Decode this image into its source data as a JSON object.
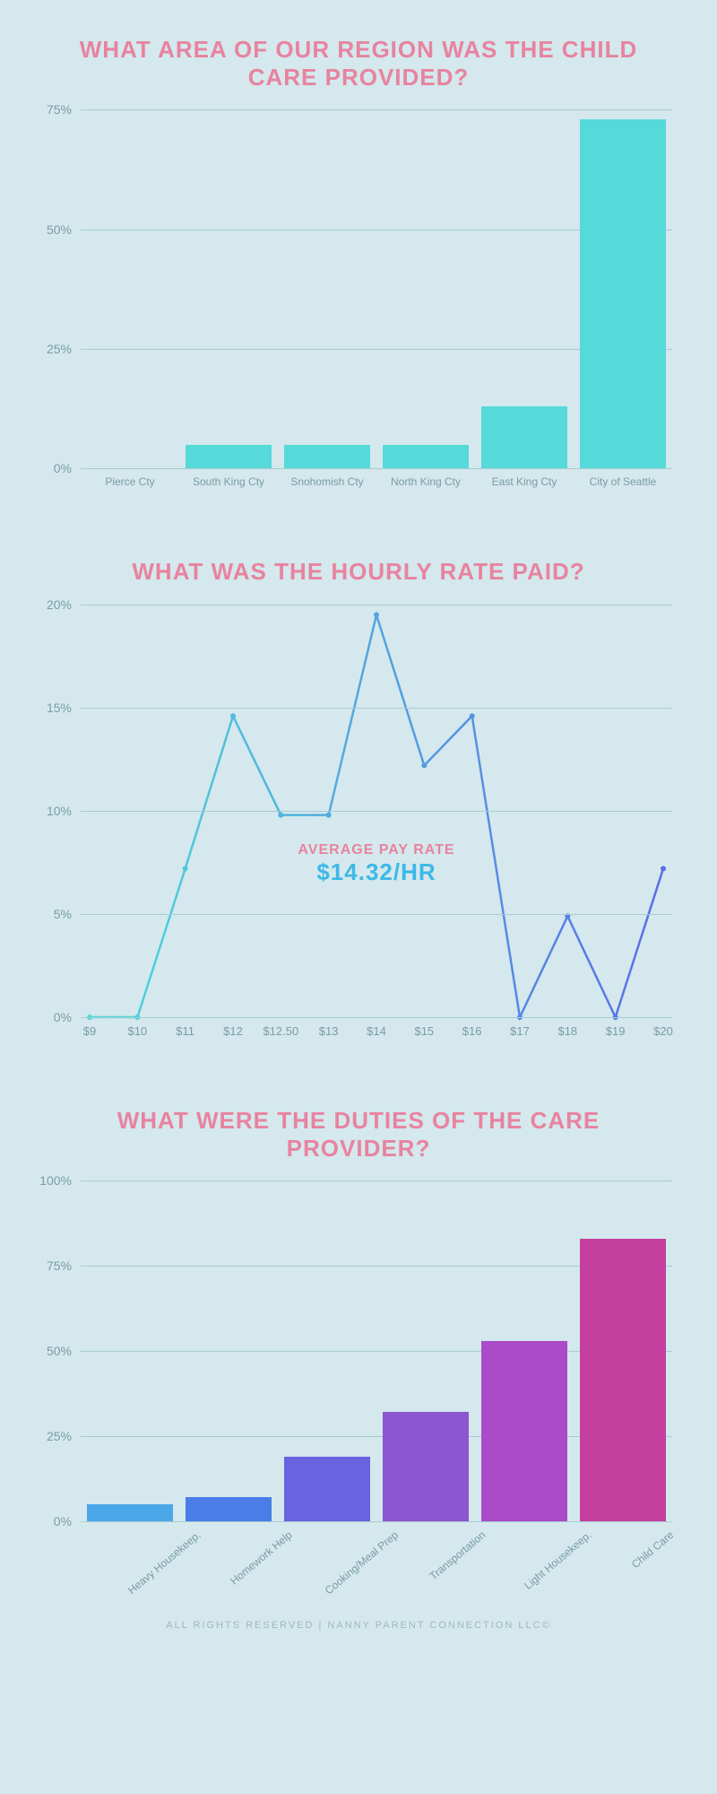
{
  "background_color": "#d4e8ed",
  "title_color": "#e8839f",
  "grid_color": "#a9cbd3",
  "axis_label_color": "#7a9ca3",
  "chart1": {
    "type": "bar",
    "title": "WHAT AREA OF OUR REGION WAS THE CHILD CARE PROVIDED?",
    "categories": [
      "Pierce Cty",
      "South King Cty",
      "Snohomish Cty",
      "North King Cty",
      "East King Cty",
      "City of Seattle"
    ],
    "values": [
      0,
      5,
      5,
      5,
      13,
      73
    ],
    "bar_color": "#56d9d9",
    "ylim": [
      0,
      75
    ],
    "ytick_step": 25,
    "yticks": [
      "0%",
      "25%",
      "50%",
      "75%"
    ],
    "label_fontsize": 12
  },
  "chart2": {
    "type": "line",
    "title": "WHAT WAS THE HOURLY RATE PAID?",
    "x_labels": [
      "$9",
      "$10",
      "$11",
      "$12",
      "$12.50",
      "$13",
      "$14",
      "$15",
      "$16",
      "$17",
      "$18",
      "$19",
      "$20"
    ],
    "values": [
      0,
      0,
      7.2,
      14.6,
      9.8,
      9.8,
      19.5,
      12.2,
      14.6,
      0,
      4.9,
      0,
      7.2
    ],
    "gradient_start": "#4dd9d9",
    "gradient_end": "#5a6de8",
    "marker_color_start": "#4dd9d9",
    "marker_color_end": "#5a6de8",
    "marker_radius": 3,
    "line_width": 2.5,
    "ylim": [
      0,
      20
    ],
    "ytick_step": 5,
    "yticks": [
      "0%",
      "5%",
      "10%",
      "15%",
      "20%"
    ],
    "annotation": {
      "line1": "AVERAGE PAY RATE",
      "line2": "$14.32/HR",
      "line1_color": "#e8839f",
      "line2_color": "#3db8e8",
      "line1_fontsize": 16,
      "line2_fontsize": 26
    }
  },
  "chart3": {
    "type": "bar",
    "title": "WHAT WERE THE DUTIES OF THE CARE PROVIDER?",
    "categories": [
      "Heavy Housekeep.",
      "Homework Help",
      "Cooking/Meal Prep",
      "Transportation",
      "Light Housekeep.",
      "Child Care"
    ],
    "values": [
      5,
      7,
      19,
      32,
      53,
      83
    ],
    "bar_colors": [
      "#4ca7e8",
      "#4a7de8",
      "#6a63e0",
      "#8c56d1",
      "#ac4bc7",
      "#c43f9e"
    ],
    "ylim": [
      0,
      100
    ],
    "ytick_step": 25,
    "yticks": [
      "0%",
      "25%",
      "50%",
      "75%",
      "100%"
    ],
    "label_fontsize": 12
  },
  "footer": "ALL RIGHTS RESERVED | NANNY PARENT CONNECTION LLC©"
}
